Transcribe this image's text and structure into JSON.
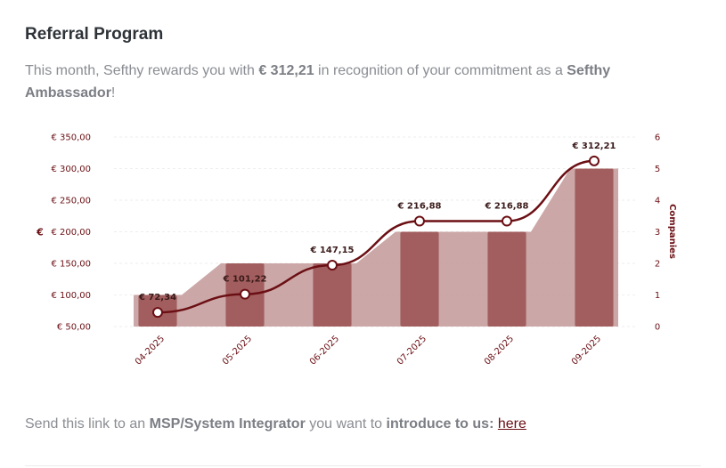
{
  "header": {
    "title": "Referral Program"
  },
  "intro": {
    "prefix": "This month, Sefthy rewards you with ",
    "amount": "€ 312,21",
    "middle": " in recognition of your commitment as a ",
    "role": "Sefthy Ambassador",
    "suffix": "!"
  },
  "colors": {
    "line": "#6b0f14",
    "bar_dark": "#a25e5e",
    "area": "#c39898",
    "tick_text": "#6b0f14"
  },
  "chart_data": {
    "type": "bar",
    "categories": [
      "04-2025",
      "05-2025",
      "06-2025",
      "07-2025",
      "08-2025",
      "09-2025"
    ],
    "series": [
      {
        "name": "Companies",
        "type": "bar",
        "axis": "right",
        "values": [
          1,
          2,
          2,
          3,
          3,
          5
        ]
      },
      {
        "name": "€",
        "type": "line",
        "axis": "left",
        "values": [
          72.34,
          101.22,
          147.15,
          216.88,
          216.88,
          312.21
        ],
        "labels": [
          "€ 72,34",
          "€ 101,22",
          "€ 147,15",
          "€ 216,88",
          "€ 216,88",
          "€ 312,21"
        ]
      }
    ],
    "ylabel": "€",
    "y2label": "Companies",
    "ylim": [
      50,
      350
    ],
    "y2lim": [
      0,
      6
    ],
    "yticks": [
      "€ 50,00",
      "€ 100,00",
      "€ 150,00",
      "€ 200,00",
      "€ 250,00",
      "€ 300,00",
      "€ 350,00"
    ],
    "y2ticks": [
      "0",
      "1",
      "2",
      "3",
      "4",
      "5",
      "6"
    ],
    "grid": true
  },
  "footer": {
    "prefix": "Send this link to an ",
    "target": "MSP/System Integrator",
    "middle": " you want to ",
    "action": "introduce to us:",
    "link": "here"
  }
}
